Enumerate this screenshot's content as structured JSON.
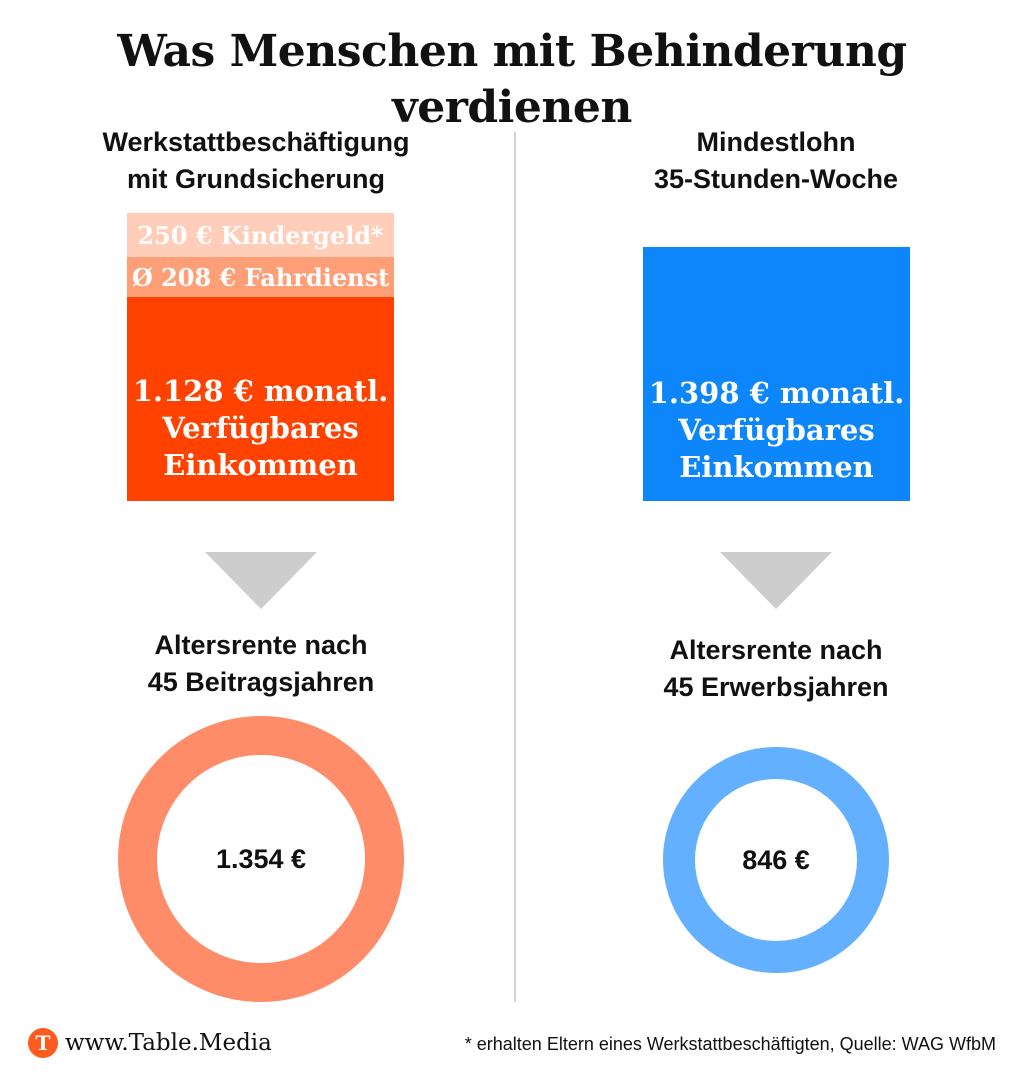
{
  "title": "Was Menschen mit Behinderung verdienen",
  "left": {
    "heading": [
      "Werkstattbeschäftigung",
      "mit Grundsicherung"
    ],
    "kindergeld": "250 € Kindergeld*",
    "fahrdienst": "Ø 208 € Fahrdienst",
    "income": [
      "1.128 € monatl.",
      "Verfügbares",
      "Einkommen"
    ],
    "pension_heading": [
      "Altersrente nach",
      "45 Beitragsjahren"
    ],
    "pension_value": "1.354 €",
    "colors": {
      "income": "#ff4200",
      "fahrdienst": "#ff9f78",
      "kindergeld": "#ffcdb8",
      "ring": "#ff8c68"
    }
  },
  "right": {
    "heading": [
      "Mindestlohn",
      "35-Stunden-Woche"
    ],
    "income": [
      "1.398 € monatl.",
      "Verfügbares",
      "Einkommen"
    ],
    "pension_heading": [
      "Altersrente nach",
      "45 Erwerbsjahren"
    ],
    "pension_value": "846 €",
    "colors": {
      "income": "#0d85fb",
      "ring": "#62b0ff"
    }
  },
  "footer": {
    "logo_letter": "T",
    "logo_icon": "table-media-logo-icon",
    "site": "www.Table.Media",
    "footnote": "* erhalten Eltern eines Werkstattbeschäftigten, Quelle: WAG WfbM"
  }
}
